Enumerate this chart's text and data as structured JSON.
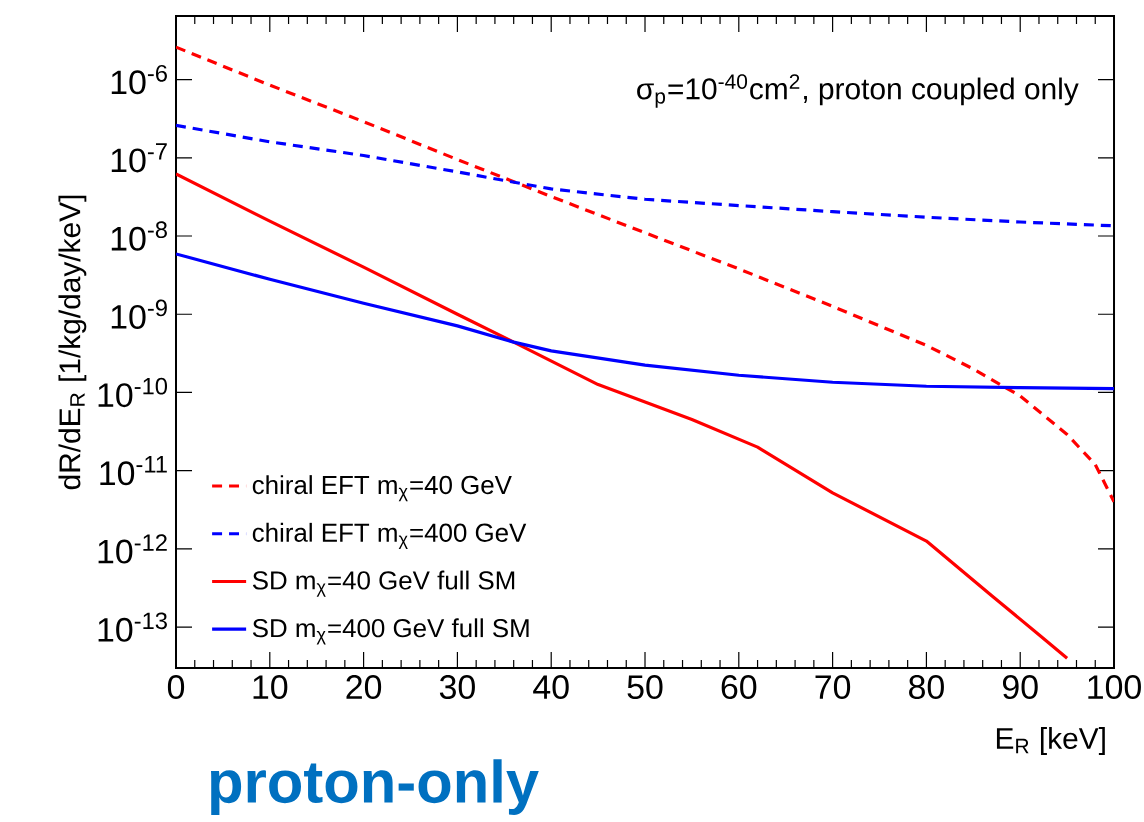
{
  "chart_data": {
    "type": "line",
    "xlabel": "E$_{R}$ [keV]",
    "ylabel": "dR/dE$_{R}$ [1/kg/day/keV]",
    "annotations": [
      "σ$_{p}$=10$^{-40}$cm$^{2}$, proton coupled only",
      "proton-only"
    ],
    "xlim": [
      0,
      100
    ],
    "xticks": [
      0,
      10,
      20,
      30,
      40,
      50,
      60,
      70,
      80,
      90,
      100
    ],
    "ylim": [
      3e-14,
      6.5e-06
    ],
    "log": "y",
    "yticks": [
      {
        "value": 1e-13,
        "label": "10$^{-13}$"
      },
      {
        "value": 1e-12,
        "label": "10$^{-12}$"
      },
      {
        "value": 1e-11,
        "label": "10$^{-11}$"
      },
      {
        "value": 1e-10,
        "label": "10$^{-10}$"
      },
      {
        "value": 1e-09,
        "label": "10$^{-9}$"
      },
      {
        "value": 1e-08,
        "label": "10$^{-8}$"
      },
      {
        "value": 1e-07,
        "label": "10$^{-7}$"
      },
      {
        "value": 1e-06,
        "label": "10$^{-6}$"
      }
    ],
    "grid": false,
    "legend": "bottom left",
    "marker": "none",
    "series": [
      {
        "name": "chiral EFT m$_{χ}$=40 GeV",
        "color": "#ff0000",
        "line_style": "dashed",
        "x": [
          0,
          10,
          20,
          30,
          40,
          50,
          60,
          70,
          80,
          85,
          90,
          95,
          98,
          100
        ],
        "values": [
          2.6e-06,
          8.5e-07,
          2.9e-07,
          9.5e-08,
          3.2e-08,
          1.1e-08,
          3.8e-09,
          1.26e-09,
          4e-10,
          2e-10,
          9e-11,
          2.9e-11,
          1.2e-11,
          4e-12
        ]
      },
      {
        "name": "chiral EFT m$_{χ}$=400 GeV",
        "color": "#0000ff",
        "line_style": "dashed",
        "x": [
          0,
          10,
          20,
          30,
          40,
          50,
          60,
          70,
          80,
          90,
          100
        ],
        "values": [
          2.6e-07,
          1.6e-07,
          1.07e-07,
          6.6e-08,
          4e-08,
          2.95e-08,
          2.45e-08,
          2.05e-08,
          1.74e-08,
          1.51e-08,
          1.35e-08
        ]
      },
      {
        "name": "SD m$_{χ}$=40 GeV full SM",
        "color": "#ff0000",
        "line_style": "solid",
        "x": [
          0,
          10,
          20,
          30,
          36,
          45,
          55,
          62,
          70,
          80,
          87,
          92,
          95
        ],
        "values": [
          6.2e-08,
          1.55e-08,
          4e-09,
          1e-09,
          4.4e-10,
          1.26e-10,
          4.5e-11,
          2e-11,
          5.2e-12,
          1.26e-12,
          2.5e-13,
          8e-14,
          4e-14
        ]
      },
      {
        "name": "SD m$_{χ}$=400 GeV full SM",
        "color": "#0000ff",
        "line_style": "solid",
        "x": [
          0,
          10,
          20,
          30,
          36,
          40,
          50,
          60,
          70,
          80,
          90,
          100
        ],
        "values": [
          5.9e-09,
          2.8e-09,
          1.38e-09,
          7.1e-10,
          4.4e-10,
          3.4e-10,
          2.24e-10,
          1.66e-10,
          1.35e-10,
          1.2e-10,
          1.15e-10,
          1.12e-10
        ]
      }
    ]
  }
}
